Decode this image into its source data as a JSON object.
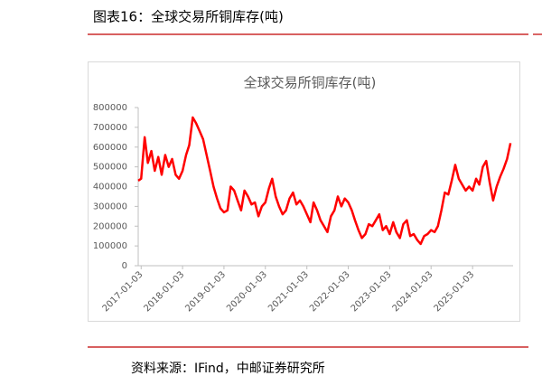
{
  "header": {
    "title": "图表16：全球交易所铜库存(吨)"
  },
  "chart_data": {
    "type": "line",
    "title": "全球交易所铜库存(吨)",
    "x": [
      "2016-12-08",
      "2017-01-03",
      "2017-02-03",
      "2017-03-03",
      "2017-04-03",
      "2017-05-03",
      "2017-06-03",
      "2017-07-03",
      "2017-08-03",
      "2017-09-03",
      "2017-10-03",
      "2017-11-03",
      "2017-12-03",
      "2018-01-03",
      "2018-02-03",
      "2018-03-03",
      "2018-04-03",
      "2018-05-03",
      "2018-06-03",
      "2018-07-03",
      "2018-08-03",
      "2018-09-03",
      "2018-10-03",
      "2018-11-03",
      "2018-12-03",
      "2019-01-03",
      "2019-02-03",
      "2019-03-03",
      "2019-04-03",
      "2019-05-03",
      "2019-06-03",
      "2019-07-03",
      "2019-08-03",
      "2019-09-03",
      "2019-10-03",
      "2019-11-03",
      "2019-12-03",
      "2020-01-03",
      "2020-02-03",
      "2020-03-03",
      "2020-04-03",
      "2020-05-03",
      "2020-06-03",
      "2020-07-03",
      "2020-08-03",
      "2020-09-03",
      "2020-10-03",
      "2020-11-03",
      "2020-12-03",
      "2021-01-03",
      "2021-02-03",
      "2021-03-03",
      "2021-04-03",
      "2021-05-03",
      "2021-06-03",
      "2021-07-03",
      "2021-08-03",
      "2021-09-03",
      "2021-10-03",
      "2021-11-03",
      "2021-12-03",
      "2022-01-03",
      "2022-02-03",
      "2022-03-03",
      "2022-04-03",
      "2022-05-03",
      "2022-06-03",
      "2022-07-03",
      "2022-08-03",
      "2022-09-03",
      "2022-10-03",
      "2022-11-03",
      "2022-12-03",
      "2023-01-03",
      "2023-02-03",
      "2023-03-03",
      "2023-04-03",
      "2023-05-03",
      "2023-06-03",
      "2023-07-03",
      "2023-08-03",
      "2023-09-03",
      "2023-10-03",
      "2023-11-03",
      "2023-12-03",
      "2024-01-03",
      "2024-02-03",
      "2024-03-03",
      "2024-04-03",
      "2024-05-03",
      "2024-06-03",
      "2024-07-03",
      "2024-08-03",
      "2024-09-03",
      "2024-10-03",
      "2024-11-03",
      "2024-12-03",
      "2025-01-03",
      "2025-02-03",
      "2025-03-03",
      "2025-04-03",
      "2025-05-03",
      "2025-06-03",
      "2025-07-03",
      "2025-08-03",
      "2025-09-03",
      "2025-10-03",
      "2025-11-03",
      "2025-12-03"
    ],
    "series": [
      {
        "color": "#ff0000",
        "values": [
          430000,
          440000,
          650000,
          520000,
          580000,
          480000,
          550000,
          460000,
          560000,
          500000,
          540000,
          460000,
          440000,
          480000,
          560000,
          610000,
          750000,
          720000,
          680000,
          640000,
          560000,
          480000,
          400000,
          340000,
          290000,
          270000,
          280000,
          400000,
          380000,
          330000,
          280000,
          380000,
          350000,
          310000,
          320000,
          250000,
          300000,
          320000,
          390000,
          440000,
          350000,
          300000,
          260000,
          280000,
          340000,
          370000,
          310000,
          330000,
          300000,
          260000,
          220000,
          320000,
          280000,
          230000,
          200000,
          170000,
          250000,
          280000,
          350000,
          300000,
          340000,
          320000,
          280000,
          230000,
          180000,
          140000,
          160000,
          210000,
          200000,
          230000,
          260000,
          180000,
          200000,
          160000,
          220000,
          170000,
          140000,
          210000,
          230000,
          150000,
          160000,
          130000,
          110000,
          150000,
          160000,
          180000,
          170000,
          200000,
          280000,
          370000,
          360000,
          430000,
          510000,
          440000,
          410000,
          380000,
          400000,
          380000,
          440000,
          410000,
          500000,
          530000,
          420000,
          330000,
          400000,
          450000,
          490000,
          540000,
          620000
        ]
      }
    ],
    "xlim": [
      "2016-12-08",
      "2025-12-26"
    ],
    "xticks": [
      "2017-01-03",
      "2018-01-03",
      "2019-01-03",
      "2020-01-03",
      "2021-01-03",
      "2022-01-03",
      "2023-01-03",
      "2024-01-03",
      "2025-01-03"
    ],
    "ylim": [
      0,
      800000
    ],
    "yticks": [
      0,
      100000,
      200000,
      300000,
      400000,
      500000,
      600000,
      700000,
      800000
    ]
  },
  "footer": {
    "source": "资料来源：IFind，中邮证券研究所"
  }
}
